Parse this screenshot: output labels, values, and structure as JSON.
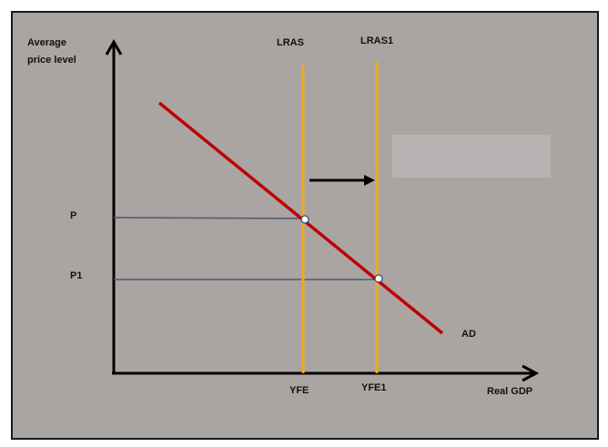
{
  "diagram": {
    "y_axis_label_line1": "Average",
    "y_axis_label_line2": "price level",
    "x_axis_label": "Real GDP",
    "price_labels": [
      "P",
      "P1"
    ],
    "output_labels": [
      "YFE",
      "YFE1"
    ],
    "curve_labels": {
      "lras": "LRAS",
      "lras1": "LRAS1",
      "ad": "AD"
    },
    "colors": {
      "background": "#aaa5a3",
      "frame": "#1a1a1a",
      "axes": "#000000",
      "ad_curve": "#c00000",
      "lras_curves": "#f2a91f",
      "guide_lines": "#4a5b6e",
      "shift_arrow": "#000000",
      "points": "#ffffff",
      "overlay_box": "#b8b4b3"
    }
  }
}
